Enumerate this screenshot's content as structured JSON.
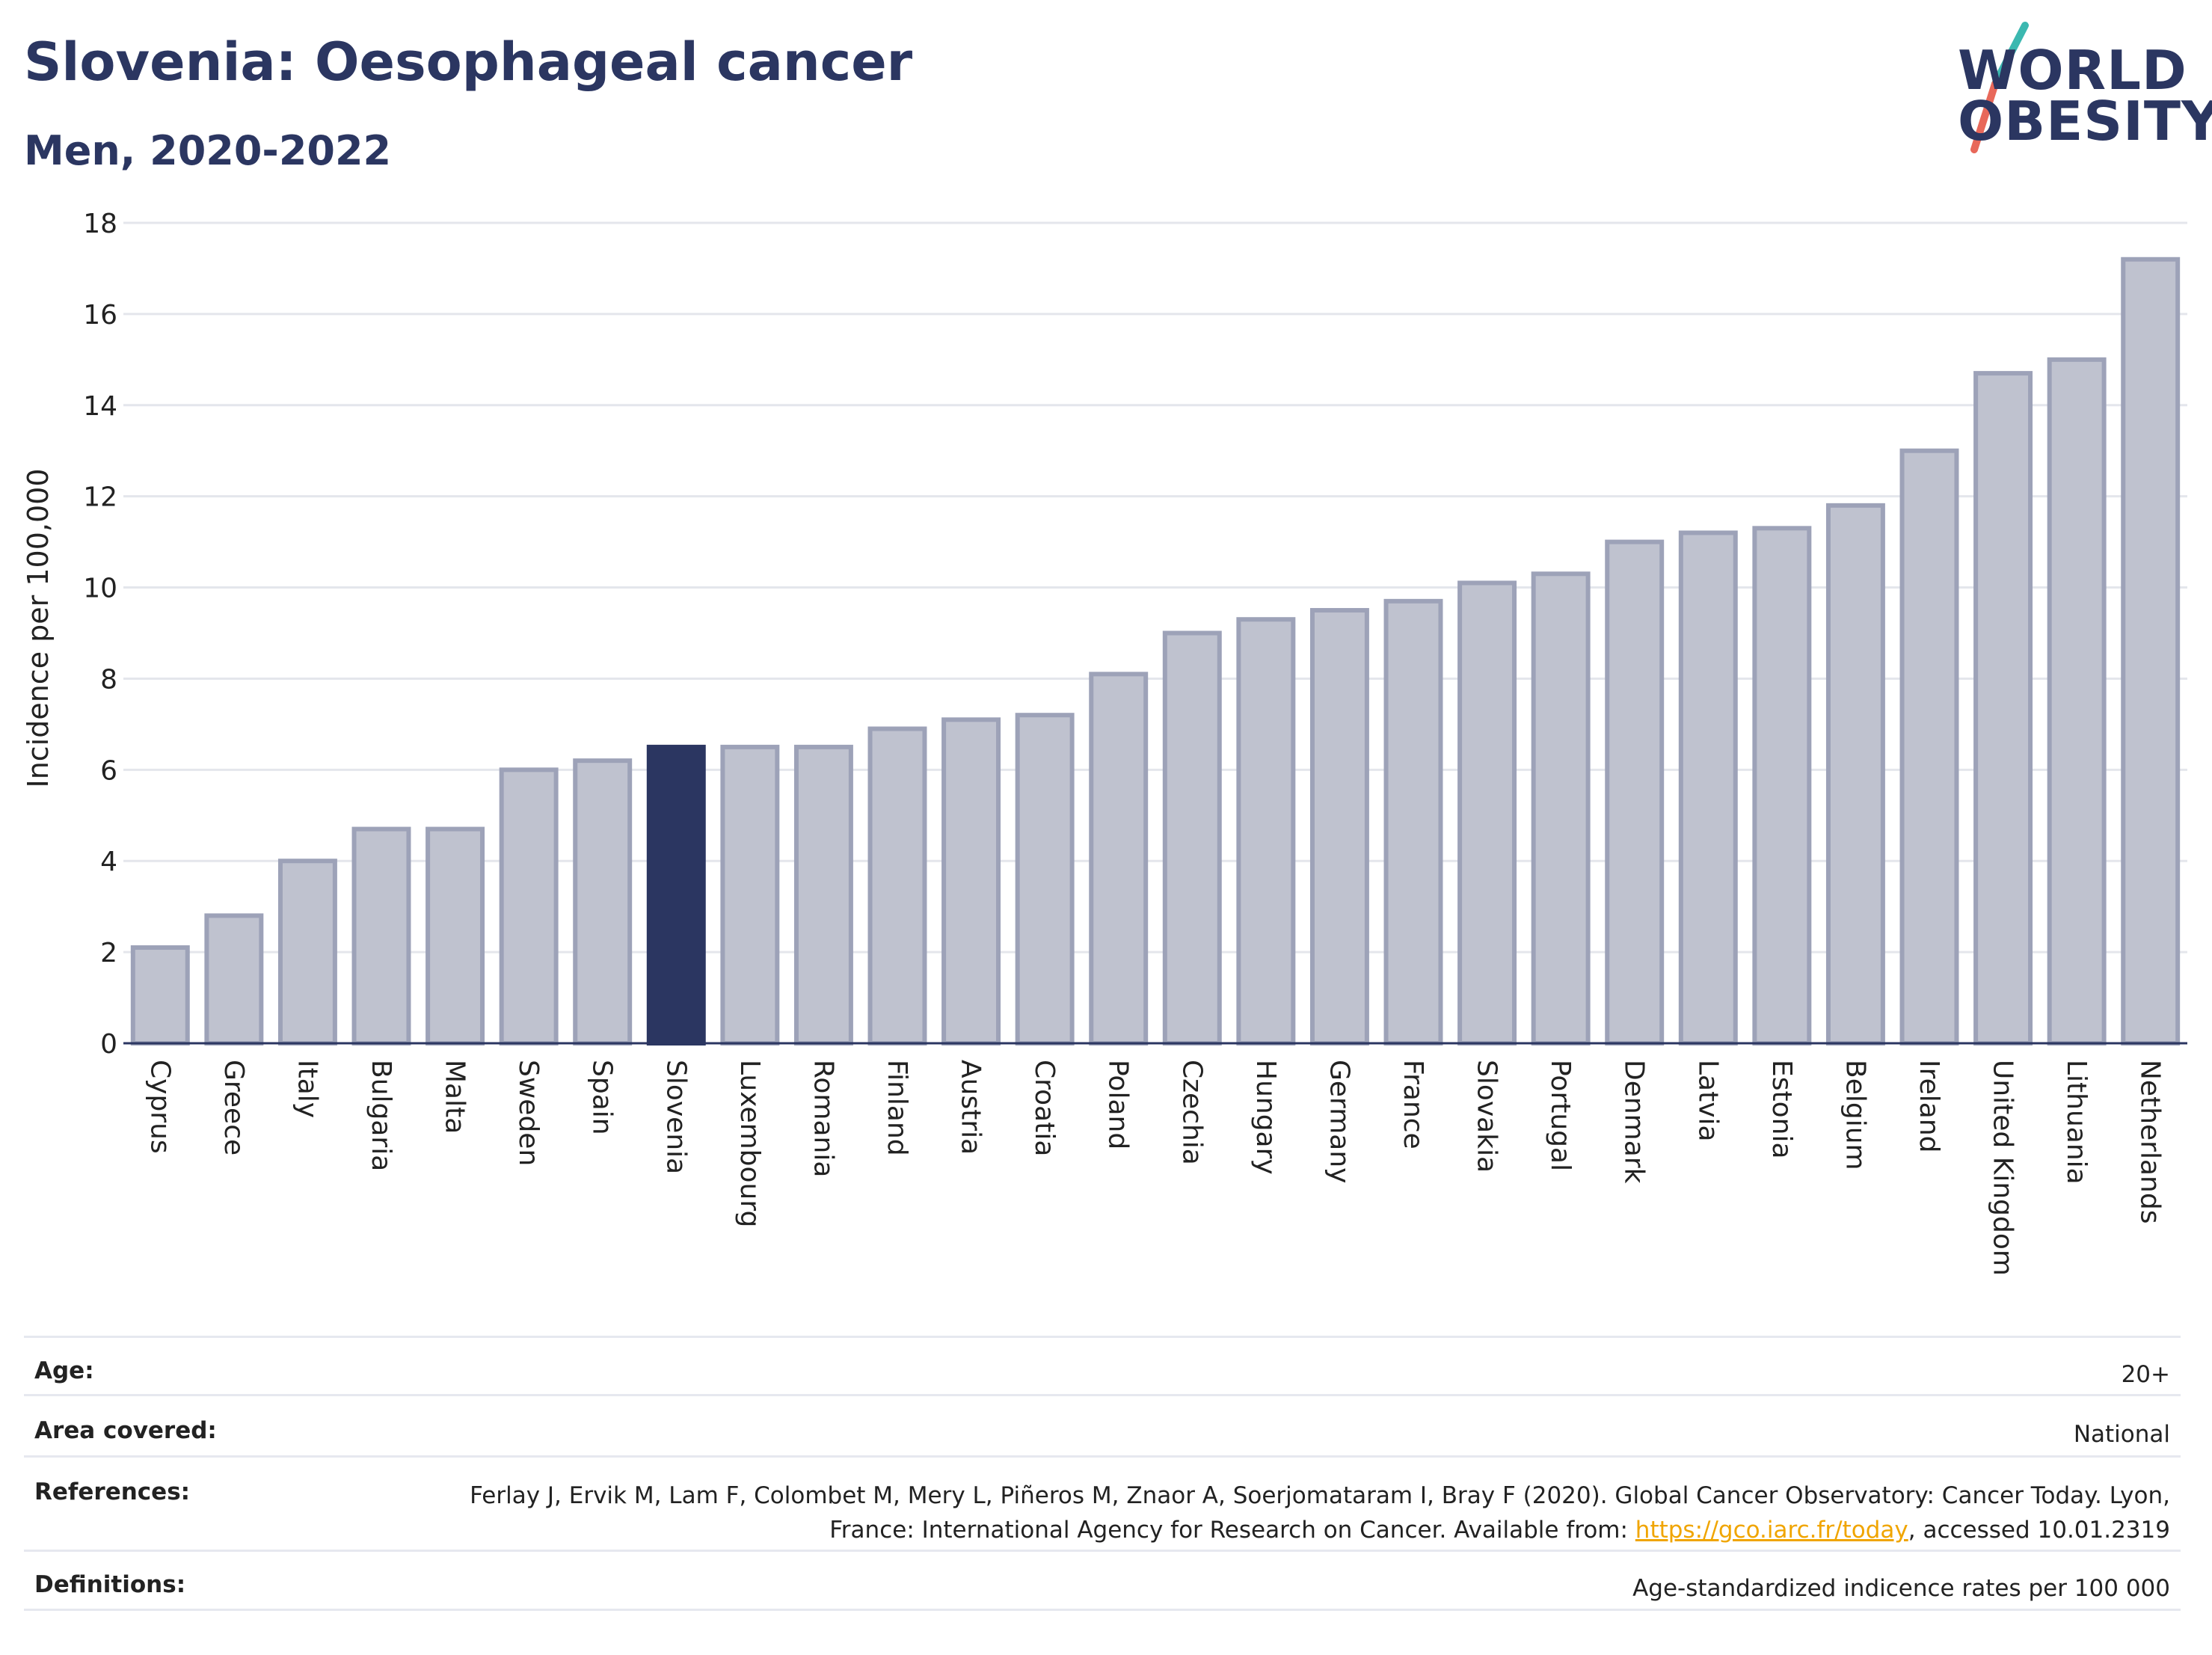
{
  "header": {
    "title": "Slovenia: Oesophageal cancer",
    "subtitle": "Men, 2020-2022"
  },
  "logo": {
    "line1": "WORLD",
    "line2": "OBESITY",
    "colors": {
      "text": "#2b3661",
      "slash_top": "#3bb8b0",
      "slash_bottom": "#e8685a"
    }
  },
  "chart_data": {
    "type": "bar",
    "title": "Slovenia: Oesophageal cancer",
    "subtitle": "Men, 2020-2022",
    "xlabel": "",
    "ylabel": "Incidence per 100,000",
    "ylim": [
      0,
      18
    ],
    "yticks": [
      0,
      2,
      4,
      6,
      8,
      10,
      12,
      14,
      16,
      18
    ],
    "grid": true,
    "highlight": "Slovenia",
    "colors": {
      "bar": "#bfc2cf",
      "bar_edge": "#9da2b8",
      "highlight": "#2b3661",
      "grid": "#e4e6ec",
      "axis": "#2b3661"
    },
    "categories": [
      "Cyprus",
      "Greece",
      "Italy",
      "Bulgaria",
      "Malta",
      "Sweden",
      "Spain",
      "Slovenia",
      "Luxembourg",
      "Romania",
      "Finland",
      "Austria",
      "Croatia",
      "Poland",
      "Czechia",
      "Hungary",
      "Germany",
      "France",
      "Slovakia",
      "Portugal",
      "Denmark",
      "Latvia",
      "Estonia",
      "Belgium",
      "Ireland",
      "United Kingdom",
      "Lithuania",
      "Netherlands"
    ],
    "values": [
      2.1,
      2.8,
      4.0,
      4.7,
      4.7,
      6.0,
      6.2,
      6.5,
      6.5,
      6.5,
      6.9,
      7.1,
      7.2,
      8.1,
      9.0,
      9.3,
      9.5,
      9.7,
      10.1,
      10.3,
      11.0,
      11.2,
      11.3,
      11.8,
      13.0,
      14.7,
      15.0,
      17.2
    ]
  },
  "meta": {
    "age_label": "Age:",
    "age_value": "20+",
    "area_label": "Area covered:",
    "area_value": "National",
    "references_label": "References:",
    "references_text_before": "Ferlay J, Ervik M, Lam F, Colombet M, Mery L, Piñeros M, Znaor A, Soerjomataram I, Bray F (2020). Global Cancer Observatory: Cancer Today. Lyon, France: International Agency for Research on Cancer. Available from: ",
    "references_link": "https://gco.iarc.fr/today",
    "references_text_after": ", accessed 10.01.2319",
    "definitions_label": "Definitions:",
    "definitions_value": "Age-standardized indicence rates per 100 000"
  }
}
